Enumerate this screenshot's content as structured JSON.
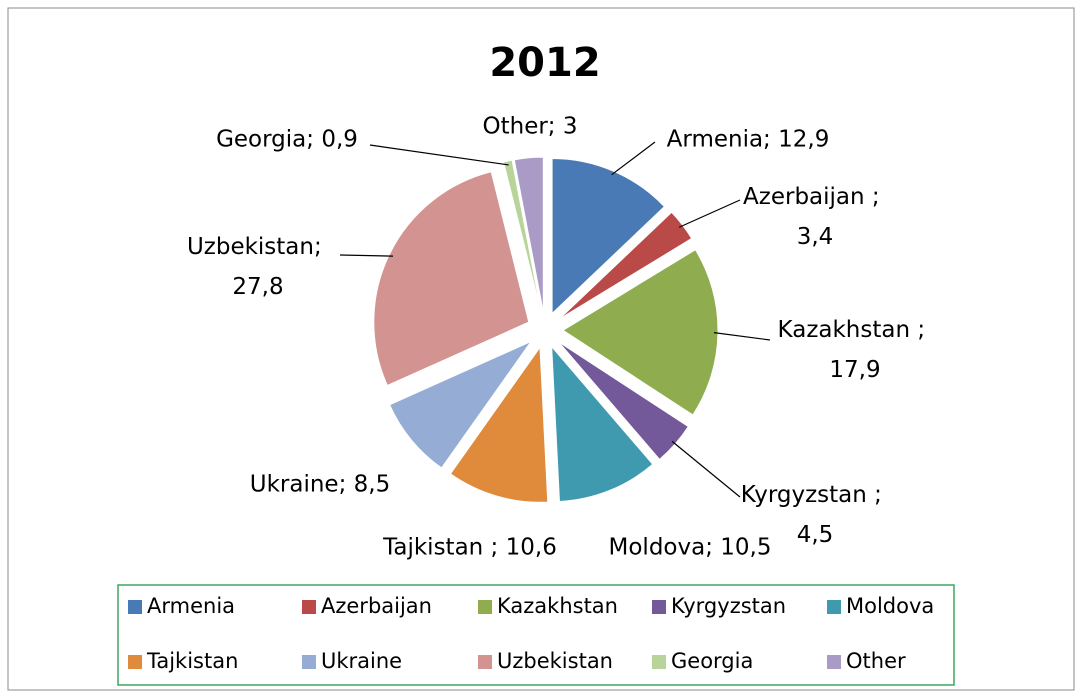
{
  "chart_data": {
    "type": "pie",
    "title": "2012",
    "categories": [
      "Armenia",
      "Azerbaijan",
      "Kazakhstan",
      "Kyrgyzstan",
      "Moldova",
      "Tajkistan",
      "Ukraine",
      "Uzbekistan",
      "Georgia",
      "Other"
    ],
    "values": [
      12.9,
      3.4,
      17.9,
      4.5,
      10.5,
      10.6,
      8.5,
      27.8,
      0.9,
      3
    ],
    "value_labels": [
      "Armenia; 12,9",
      "Azerbaijan ; 3,4",
      "Kazakhstan ; 17,9",
      "Kyrgyzstan ; 4,5",
      "Moldova; 10,5",
      "Tajkistan ; 10,6",
      "Ukraine; 8,5",
      "Uzbekistan; 27,8",
      "Georgia; 0,9",
      "Other; 3"
    ],
    "colors": [
      "#4a7ab5",
      "#b94a48",
      "#8fad4f",
      "#73589a",
      "#3f9ab0",
      "#e08a3c",
      "#95acd4",
      "#d29391",
      "#b9d49a",
      "#a99bc6"
    ],
    "legend": "bottom"
  }
}
